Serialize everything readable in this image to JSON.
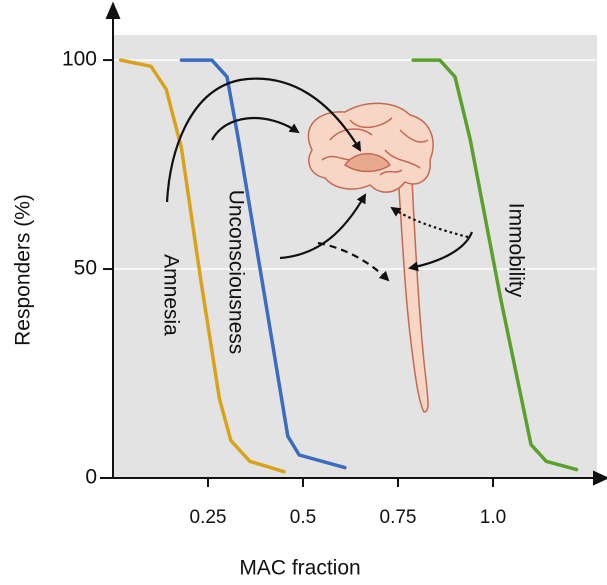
{
  "chart_data": {
    "type": "line",
    "x_label": "MAC fraction",
    "y_label": "Responders (%)",
    "xlim": [
      0,
      1.27
    ],
    "xticks": [
      0.25,
      0.5,
      0.75,
      {
        "value": 1.0,
        "label": "1.0"
      }
    ],
    "ylim": [
      0,
      106
    ],
    "yticks": [
      0,
      50,
      100
    ],
    "grid": true,
    "series": [
      {
        "name": "Amnesia",
        "color": "#d9a21b",
        "x": [
          0.02,
          0.1,
          0.14,
          0.18,
          0.23,
          0.28,
          0.31,
          0.36,
          0.45
        ],
        "values": [
          100,
          98.5,
          93,
          79,
          48,
          19,
          9,
          4,
          1.5
        ]
      },
      {
        "name": "Unconsciousness",
        "color": "#3a6cc0",
        "x": [
          0.18,
          0.26,
          0.3,
          0.33,
          0.4,
          0.46,
          0.49,
          0.61
        ],
        "values": [
          100,
          100,
          96,
          81,
          43,
          10,
          5.5,
          2.5
        ]
      },
      {
        "name": "Immobility",
        "color": "#5aa02c",
        "x": [
          0.79,
          0.86,
          0.9,
          0.94,
          1.02,
          1.1,
          1.14,
          1.22
        ],
        "values": [
          100,
          100,
          96,
          81,
          43,
          8,
          4,
          2
        ]
      }
    ]
  }
}
